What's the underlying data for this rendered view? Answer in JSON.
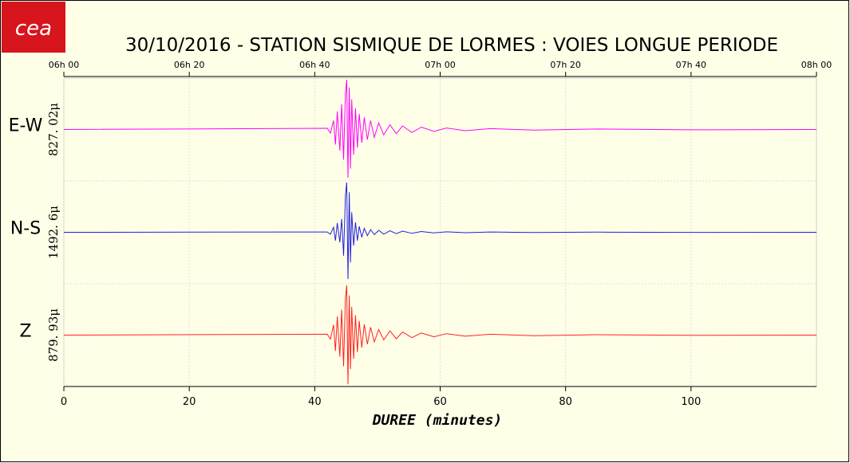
{
  "logo": "cea",
  "chart_data": {
    "type": "line",
    "title": "30/10/2016  -  STATION SISMIQUE DE LORMES : VOIES LONGUE PERIODE",
    "xlabel": "DUREE (minutes)",
    "xlim": [
      0,
      120
    ],
    "xticks": [
      0,
      20,
      40,
      60,
      80,
      100
    ],
    "x2ticks": [
      {
        "value": 0,
        "label": "06h 00"
      },
      {
        "value": 20,
        "label": "06h 20"
      },
      {
        "value": 40,
        "label": "06h 40"
      },
      {
        "value": 60,
        "label": "07h 00"
      },
      {
        "value": 80,
        "label": "07h 20"
      },
      {
        "value": 100,
        "label": "07h 40"
      },
      {
        "value": 120,
        "label": "08h 00"
      }
    ],
    "grid": true,
    "x": [
      0,
      42,
      42.5,
      43,
      43.3,
      43.6,
      44,
      44.3,
      44.6,
      44.9,
      45.1,
      45.3,
      45.5,
      45.7,
      45.9,
      46.2,
      46.5,
      46.8,
      47.1,
      47.5,
      47.9,
      48.4,
      48.9,
      49.5,
      50.2,
      51,
      52,
      53,
      54,
      55.5,
      57,
      59,
      61,
      64,
      68,
      75,
      85,
      100,
      120
    ],
    "series": [
      {
        "name": "E-W",
        "color": "#ff00ff",
        "amplitude": {
          "value": 827.02,
          "label": "827. 02μ"
        },
        "values": [
          0,
          20,
          -60,
          150,
          -250,
          300,
          -350,
          420,
          -500,
          600,
          827.02,
          -800,
          700,
          -650,
          500,
          -420,
          350,
          -300,
          260,
          -220,
          200,
          -170,
          150,
          -130,
          110,
          -90,
          80,
          -70,
          60,
          -50,
          40,
          -30,
          25,
          -20,
          15,
          -10,
          8,
          -5,
          0
        ]
      },
      {
        "name": "N-S",
        "color": "#2020e0",
        "amplitude": {
          "value": 1492.6,
          "label": "1492. 6μ"
        },
        "values": [
          0,
          10,
          -60,
          150,
          -250,
          280,
          -300,
          400,
          -700,
          1100,
          1492.6,
          -1400,
          1200,
          -900,
          600,
          -400,
          300,
          -250,
          180,
          -150,
          120,
          -100,
          80,
          -70,
          60,
          -55,
          45,
          -40,
          35,
          -30,
          25,
          -20,
          15,
          -12,
          10,
          -8,
          5,
          -3,
          0
        ]
      },
      {
        "name": "Z",
        "color": "#ff2020",
        "amplitude": {
          "value": 879.93,
          "label": "879. 93μ"
        },
        "values": [
          0,
          15,
          -70,
          180,
          -280,
          330,
          -380,
          450,
          -550,
          650,
          879.93,
          -870,
          700,
          -600,
          500,
          -420,
          350,
          -300,
          250,
          -220,
          190,
          -160,
          140,
          -120,
          100,
          -85,
          75,
          -65,
          55,
          -45,
          38,
          -30,
          25,
          -20,
          15,
          -10,
          7,
          -4,
          0
        ]
      }
    ]
  }
}
